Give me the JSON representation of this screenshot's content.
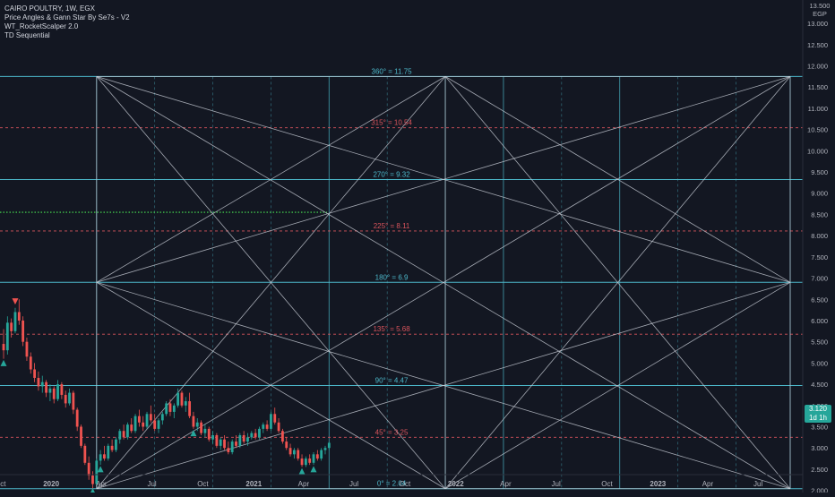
{
  "header": {
    "symbol": "CAIRO POULTRY, 1W, EGX",
    "indicators": [
      "Price Angles & Gann Star By Se7s - V2",
      "WT_RocketScalper 2.0",
      "TD Sequential"
    ],
    "currency_top": "13.500",
    "currency": "EGP"
  },
  "last_price": {
    "value": "3.120",
    "countdown": "1d 1h",
    "color": "#26a69a"
  },
  "colors": {
    "background": "#131722",
    "gann_lines": "#c8cdd6",
    "level_cyan": "#4cb7c9",
    "level_red": "#d9545c",
    "green_level": "#3fbf4a",
    "candle_up": "#26a69a",
    "candle_down": "#ef5350"
  },
  "chart_data": {
    "type": "candlestick",
    "y_axis": {
      "range": [
        1.95,
        13.55
      ],
      "ticks": [
        "2.000",
        "2.500",
        "3.000",
        "3.500",
        "4.000",
        "4.500",
        "5.000",
        "5.500",
        "6.000",
        "6.500",
        "7.000",
        "7.500",
        "8.000",
        "8.500",
        "9.000",
        "9.500",
        "10.000",
        "10.500",
        "11.000",
        "11.500",
        "12.000",
        "12.500",
        "13.000"
      ]
    },
    "x_axis": {
      "labels": [
        {
          "label": "Oct",
          "date": "2019-10"
        },
        {
          "label": "2020",
          "date": "2020-01"
        },
        {
          "label": "Apr",
          "date": "2020-04"
        },
        {
          "label": "Jul",
          "date": "2020-07"
        },
        {
          "label": "Oct",
          "date": "2020-10"
        },
        {
          "label": "2021",
          "date": "2021-01"
        },
        {
          "label": "Apr",
          "date": "2021-04"
        },
        {
          "label": "Jul",
          "date": "2021-07"
        },
        {
          "label": "Oct",
          "date": "2021-10"
        },
        {
          "label": "2022",
          "date": "2022-01"
        },
        {
          "label": "Apr",
          "date": "2022-04"
        },
        {
          "label": "Jul",
          "date": "2022-07"
        },
        {
          "label": "Oct",
          "date": "2022-10"
        },
        {
          "label": "2023",
          "date": "2023-01"
        },
        {
          "label": "Apr",
          "date": "2023-04"
        },
        {
          "label": "Jul",
          "date": "2023-07"
        }
      ]
    },
    "gann_levels": [
      {
        "label": "360° = 11.75",
        "price": 11.75,
        "style": "solid"
      },
      {
        "label": "315° = 10.54",
        "price": 10.54,
        "style": "dashed"
      },
      {
        "label": "270° = 9.32",
        "price": 9.32,
        "style": "solid"
      },
      {
        "label": "225° = 8.11",
        "price": 8.11,
        "style": "dashed"
      },
      {
        "label": "180° = 6.9",
        "price": 6.9,
        "style": "solid"
      },
      {
        "label": "135° = 5.68",
        "price": 5.68,
        "style": "dashed"
      },
      {
        "label": "90° = 4.47",
        "price": 4.47,
        "style": "solid"
      },
      {
        "label": "45° = 3.25",
        "price": 3.25,
        "style": "dashed"
      },
      {
        "label": "0° = 2.04",
        "price": 2.04,
        "style": "solid"
      }
    ],
    "green_level_price": 8.55,
    "gann_star": {
      "start_date": "2020-03-23",
      "mid_date": "2021-12-13",
      "end_date": "2023-08-28",
      "low": 2.04,
      "mid": 6.9,
      "high": 11.75
    },
    "vertical_grid_dates": [
      "2020-03-23",
      "2020-07-06",
      "2020-10-19",
      "2021-02-01",
      "2021-05-17",
      "2021-08-30",
      "2021-12-13",
      "2022-03-28",
      "2022-07-11",
      "2022-10-24",
      "2023-02-06",
      "2023-05-22",
      "2023-08-28"
    ],
    "candles": [
      {
        "d": "2019-10-07",
        "o": 5.45,
        "h": 5.8,
        "l": 5.1,
        "c": 5.3
      },
      {
        "d": "2019-10-14",
        "o": 5.3,
        "h": 6.1,
        "l": 5.2,
        "c": 5.95
      },
      {
        "d": "2019-10-21",
        "o": 5.95,
        "h": 6.05,
        "l": 5.6,
        "c": 5.75
      },
      {
        "d": "2019-10-28",
        "o": 5.75,
        "h": 6.3,
        "l": 5.7,
        "c": 6.2
      },
      {
        "d": "2019-11-04",
        "o": 6.2,
        "h": 6.5,
        "l": 5.9,
        "c": 6.0
      },
      {
        "d": "2019-11-11",
        "o": 6.0,
        "h": 6.1,
        "l": 5.4,
        "c": 5.5
      },
      {
        "d": "2019-11-18",
        "o": 5.5,
        "h": 5.6,
        "l": 5.05,
        "c": 5.15
      },
      {
        "d": "2019-11-25",
        "o": 5.15,
        "h": 5.25,
        "l": 4.75,
        "c": 4.85
      },
      {
        "d": "2019-12-02",
        "o": 4.85,
        "h": 5.0,
        "l": 4.55,
        "c": 4.65
      },
      {
        "d": "2019-12-09",
        "o": 4.65,
        "h": 4.8,
        "l": 4.35,
        "c": 4.45
      },
      {
        "d": "2019-12-16",
        "o": 4.45,
        "h": 4.7,
        "l": 4.3,
        "c": 4.55
      },
      {
        "d": "2019-12-23",
        "o": 4.55,
        "h": 4.6,
        "l": 4.2,
        "c": 4.3
      },
      {
        "d": "2019-12-30",
        "o": 4.3,
        "h": 4.5,
        "l": 4.1,
        "c": 4.4
      },
      {
        "d": "2020-01-06",
        "o": 4.4,
        "h": 4.45,
        "l": 4.05,
        "c": 4.15
      },
      {
        "d": "2020-01-13",
        "o": 4.15,
        "h": 4.6,
        "l": 4.1,
        "c": 4.5
      },
      {
        "d": "2020-01-20",
        "o": 4.5,
        "h": 4.55,
        "l": 4.15,
        "c": 4.25
      },
      {
        "d": "2020-01-27",
        "o": 4.25,
        "h": 4.35,
        "l": 3.95,
        "c": 4.05
      },
      {
        "d": "2020-02-03",
        "o": 4.05,
        "h": 4.4,
        "l": 4.0,
        "c": 4.3
      },
      {
        "d": "2020-02-10",
        "o": 4.3,
        "h": 4.35,
        "l": 3.8,
        "c": 3.9
      },
      {
        "d": "2020-02-17",
        "o": 3.9,
        "h": 3.95,
        "l": 3.4,
        "c": 3.5
      },
      {
        "d": "2020-02-24",
        "o": 3.5,
        "h": 3.55,
        "l": 3.0,
        "c": 3.05
      },
      {
        "d": "2020-03-02",
        "o": 3.05,
        "h": 3.1,
        "l": 2.6,
        "c": 2.65
      },
      {
        "d": "2020-03-09",
        "o": 2.65,
        "h": 2.8,
        "l": 2.25,
        "c": 2.35
      },
      {
        "d": "2020-03-16",
        "o": 2.35,
        "h": 2.45,
        "l": 2.04,
        "c": 2.15
      },
      {
        "d": "2020-03-23",
        "o": 2.15,
        "h": 2.75,
        "l": 2.1,
        "c": 2.7
      },
      {
        "d": "2020-03-30",
        "o": 2.7,
        "h": 2.95,
        "l": 2.6,
        "c": 2.85
      },
      {
        "d": "2020-04-06",
        "o": 2.85,
        "h": 3.05,
        "l": 2.7,
        "c": 2.75
      },
      {
        "d": "2020-04-13",
        "o": 2.75,
        "h": 3.1,
        "l": 2.7,
        "c": 3.05
      },
      {
        "d": "2020-04-20",
        "o": 3.05,
        "h": 3.2,
        "l": 2.9,
        "c": 2.95
      },
      {
        "d": "2020-04-27",
        "o": 2.95,
        "h": 3.25,
        "l": 2.9,
        "c": 3.2
      },
      {
        "d": "2020-05-04",
        "o": 3.2,
        "h": 3.45,
        "l": 3.1,
        "c": 3.4
      },
      {
        "d": "2020-05-11",
        "o": 3.4,
        "h": 3.55,
        "l": 3.2,
        "c": 3.25
      },
      {
        "d": "2020-05-18",
        "o": 3.25,
        "h": 3.6,
        "l": 3.2,
        "c": 3.55
      },
      {
        "d": "2020-05-25",
        "o": 3.55,
        "h": 3.7,
        "l": 3.35,
        "c": 3.4
      },
      {
        "d": "2020-06-01",
        "o": 3.4,
        "h": 3.8,
        "l": 3.35,
        "c": 3.75
      },
      {
        "d": "2020-06-08",
        "o": 3.75,
        "h": 3.9,
        "l": 3.5,
        "c": 3.6
      },
      {
        "d": "2020-06-15",
        "o": 3.6,
        "h": 3.75,
        "l": 3.4,
        "c": 3.5
      },
      {
        "d": "2020-06-22",
        "o": 3.5,
        "h": 3.85,
        "l": 3.45,
        "c": 3.8
      },
      {
        "d": "2020-06-29",
        "o": 3.8,
        "h": 4.0,
        "l": 3.6,
        "c": 3.65
      },
      {
        "d": "2020-07-06",
        "o": 3.65,
        "h": 3.8,
        "l": 3.4,
        "c": 3.45
      },
      {
        "d": "2020-07-13",
        "o": 3.45,
        "h": 3.7,
        "l": 3.35,
        "c": 3.65
      },
      {
        "d": "2020-07-20",
        "o": 3.65,
        "h": 3.85,
        "l": 3.55,
        "c": 3.8
      },
      {
        "d": "2020-07-27",
        "o": 3.8,
        "h": 4.1,
        "l": 3.75,
        "c": 4.05
      },
      {
        "d": "2020-08-03",
        "o": 4.05,
        "h": 4.15,
        "l": 3.75,
        "c": 3.85
      },
      {
        "d": "2020-08-10",
        "o": 3.85,
        "h": 4.05,
        "l": 3.7,
        "c": 4.0
      },
      {
        "d": "2020-08-17",
        "o": 4.0,
        "h": 4.4,
        "l": 3.95,
        "c": 4.3
      },
      {
        "d": "2020-08-24",
        "o": 4.3,
        "h": 4.35,
        "l": 3.95,
        "c": 4.0
      },
      {
        "d": "2020-08-31",
        "o": 4.0,
        "h": 4.2,
        "l": 3.85,
        "c": 4.1
      },
      {
        "d": "2020-09-07",
        "o": 4.1,
        "h": 4.3,
        "l": 3.7,
        "c": 3.75
      },
      {
        "d": "2020-09-14",
        "o": 3.75,
        "h": 3.85,
        "l": 3.45,
        "c": 3.5
      },
      {
        "d": "2020-09-21",
        "o": 3.5,
        "h": 3.7,
        "l": 3.4,
        "c": 3.6
      },
      {
        "d": "2020-09-28",
        "o": 3.6,
        "h": 3.65,
        "l": 3.3,
        "c": 3.35
      },
      {
        "d": "2020-10-05",
        "o": 3.35,
        "h": 3.55,
        "l": 3.25,
        "c": 3.45
      },
      {
        "d": "2020-10-12",
        "o": 3.45,
        "h": 3.5,
        "l": 3.15,
        "c": 3.2
      },
      {
        "d": "2020-10-19",
        "o": 3.2,
        "h": 3.4,
        "l": 3.1,
        "c": 3.3
      },
      {
        "d": "2020-10-26",
        "o": 3.3,
        "h": 3.35,
        "l": 3.0,
        "c": 3.05
      },
      {
        "d": "2020-11-02",
        "o": 3.05,
        "h": 3.25,
        "l": 2.95,
        "c": 3.2
      },
      {
        "d": "2020-11-09",
        "o": 3.2,
        "h": 3.3,
        "l": 2.95,
        "c": 3.0
      },
      {
        "d": "2020-11-16",
        "o": 3.0,
        "h": 3.15,
        "l": 2.85,
        "c": 2.9
      },
      {
        "d": "2020-11-23",
        "o": 2.9,
        "h": 3.2,
        "l": 2.85,
        "c": 3.15
      },
      {
        "d": "2020-11-30",
        "o": 3.15,
        "h": 3.3,
        "l": 3.0,
        "c": 3.05
      },
      {
        "d": "2020-12-07",
        "o": 3.05,
        "h": 3.35,
        "l": 3.0,
        "c": 3.3
      },
      {
        "d": "2020-12-14",
        "o": 3.3,
        "h": 3.4,
        "l": 3.1,
        "c": 3.15
      },
      {
        "d": "2020-12-21",
        "o": 3.15,
        "h": 3.35,
        "l": 3.05,
        "c": 3.25
      },
      {
        "d": "2020-12-28",
        "o": 3.25,
        "h": 3.4,
        "l": 3.2,
        "c": 3.35
      },
      {
        "d": "2021-01-04",
        "o": 3.35,
        "h": 3.45,
        "l": 3.2,
        "c": 3.25
      },
      {
        "d": "2021-01-11",
        "o": 3.25,
        "h": 3.5,
        "l": 3.2,
        "c": 3.45
      },
      {
        "d": "2021-01-18",
        "o": 3.45,
        "h": 3.6,
        "l": 3.35,
        "c": 3.55
      },
      {
        "d": "2021-01-25",
        "o": 3.55,
        "h": 3.65,
        "l": 3.4,
        "c": 3.45
      },
      {
        "d": "2021-02-01",
        "o": 3.45,
        "h": 3.85,
        "l": 3.4,
        "c": 3.8
      },
      {
        "d": "2021-02-08",
        "o": 3.8,
        "h": 3.95,
        "l": 3.55,
        "c": 3.6
      },
      {
        "d": "2021-02-15",
        "o": 3.6,
        "h": 3.7,
        "l": 3.35,
        "c": 3.4
      },
      {
        "d": "2021-02-22",
        "o": 3.4,
        "h": 3.45,
        "l": 3.1,
        "c": 3.15
      },
      {
        "d": "2021-03-01",
        "o": 3.15,
        "h": 3.25,
        "l": 2.95,
        "c": 3.0
      },
      {
        "d": "2021-03-08",
        "o": 3.0,
        "h": 3.1,
        "l": 2.8,
        "c": 2.85
      },
      {
        "d": "2021-03-15",
        "o": 2.85,
        "h": 3.0,
        "l": 2.75,
        "c": 2.95
      },
      {
        "d": "2021-03-22",
        "o": 2.95,
        "h": 3.0,
        "l": 2.7,
        "c": 2.75
      },
      {
        "d": "2021-03-29",
        "o": 2.75,
        "h": 2.85,
        "l": 2.55,
        "c": 2.6
      },
      {
        "d": "2021-04-05",
        "o": 2.6,
        "h": 2.8,
        "l": 2.55,
        "c": 2.75
      },
      {
        "d": "2021-04-12",
        "o": 2.75,
        "h": 2.85,
        "l": 2.6,
        "c": 2.65
      },
      {
        "d": "2021-04-19",
        "o": 2.65,
        "h": 2.9,
        "l": 2.6,
        "c": 2.85
      },
      {
        "d": "2021-04-26",
        "o": 2.85,
        "h": 2.95,
        "l": 2.7,
        "c": 2.75
      },
      {
        "d": "2021-05-03",
        "o": 2.75,
        "h": 3.0,
        "l": 2.7,
        "c": 2.95
      },
      {
        "d": "2021-05-10",
        "o": 2.95,
        "h": 3.05,
        "l": 2.85,
        "c": 3.0
      },
      {
        "d": "2021-05-17",
        "o": 3.0,
        "h": 3.15,
        "l": 2.95,
        "c": 3.12
      }
    ],
    "td_markers": [
      {
        "d": "2019-10-28",
        "price": 6.45,
        "dir": "sell"
      },
      {
        "d": "2019-10-07",
        "price": 5.0,
        "dir": "buy"
      },
      {
        "d": "2020-03-16",
        "price": 1.98,
        "dir": "buy"
      },
      {
        "d": "2020-03-30",
        "price": 2.5,
        "dir": "buy"
      },
      {
        "d": "2020-09-14",
        "price": 3.35,
        "dir": "buy"
      },
      {
        "d": "2021-03-29",
        "price": 2.45,
        "dir": "buy"
      },
      {
        "d": "2021-04-19",
        "price": 2.5,
        "dir": "buy"
      }
    ]
  }
}
